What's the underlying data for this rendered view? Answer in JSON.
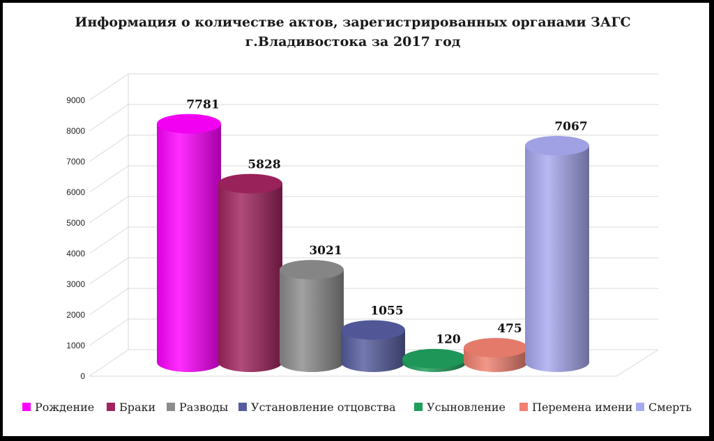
{
  "chart_data": {
    "type": "bar",
    "title_line1": "Информация о количестве актов, зарегистрированных органами ЗАГС",
    "title_line2": "г.Владивостока за 2017 год",
    "categories": [
      "Рождение",
      "Браки",
      "Разводы",
      "Установление отцовства",
      "Усыновление",
      "Перемена имени",
      "Смерть"
    ],
    "values": [
      7781,
      5828,
      3021,
      1055,
      120,
      475,
      7067
    ],
    "colors": [
      "#ff00ff",
      "#a0245e",
      "#8c8c8c",
      "#555c9e",
      "#1f9e5c",
      "#f08070",
      "#a8a8f0"
    ],
    "yticks": [
      "0",
      "1000",
      "2000",
      "3000",
      "4000",
      "5000",
      "6000",
      "7000",
      "8000",
      "9000"
    ],
    "ylim": [
      0,
      9000
    ],
    "legend_position": "bottom",
    "grid": true
  }
}
